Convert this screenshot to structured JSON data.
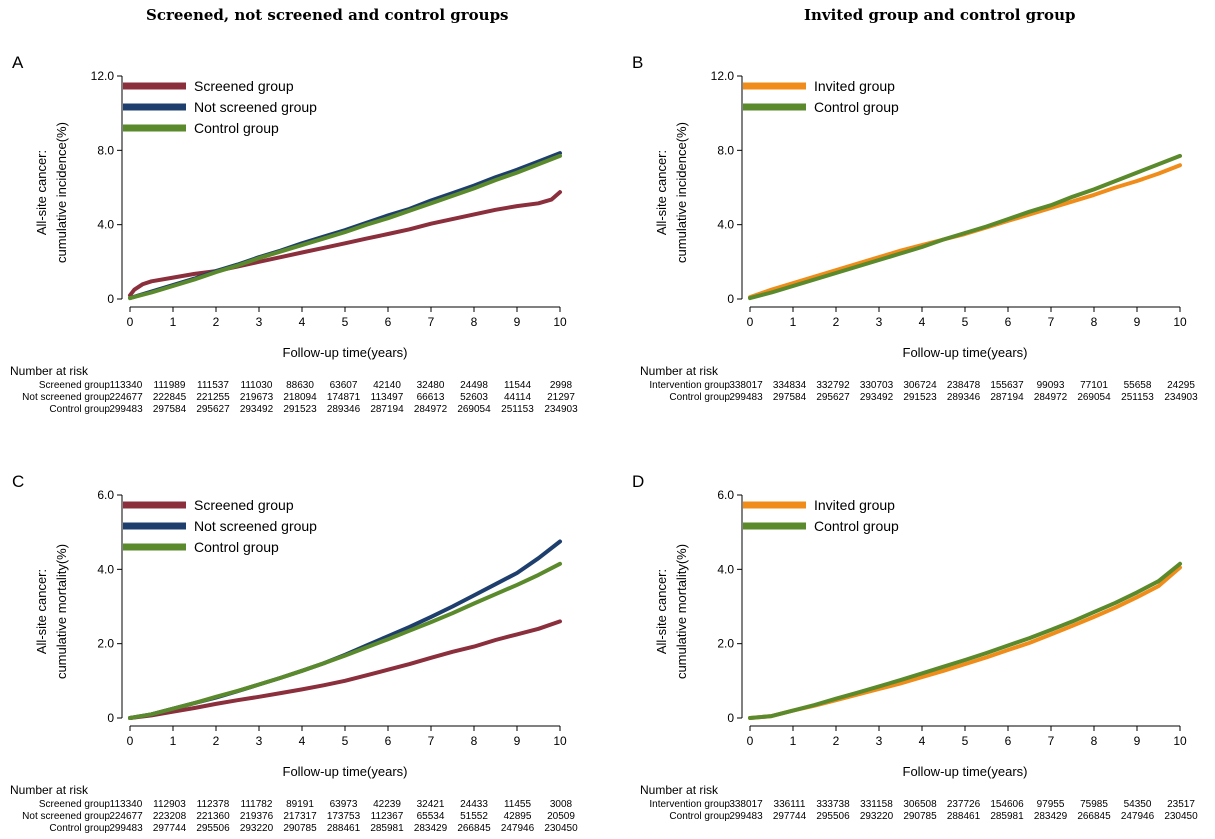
{
  "headings": {
    "left": "Screened, not screened and control groups",
    "right": "Invited group and control group"
  },
  "chart_data": [
    {
      "type": "line",
      "panel": "A",
      "xlabel": "Follow-up time(years)",
      "ylabel_line1": "All-site cancer:",
      "ylabel_line2": "cumulative incidence(%)",
      "xlim": [
        0,
        10
      ],
      "ylim": [
        0,
        12
      ],
      "xticks": [
        0,
        1,
        2,
        3,
        4,
        5,
        6,
        7,
        8,
        9,
        10
      ],
      "yticks": [
        {
          "v": 0,
          "label": "0"
        },
        {
          "v": 4,
          "label": "4.0"
        },
        {
          "v": 8,
          "label": "8.0"
        },
        {
          "v": 12,
          "label": "12.0"
        }
      ],
      "legend_position": "top-left",
      "series": [
        {
          "name": "Screened group",
          "color": "#8B2F3C",
          "x": [
            0,
            0.1,
            0.3,
            0.5,
            1,
            1.5,
            2,
            2.5,
            3,
            3.5,
            4,
            4.5,
            5,
            5.5,
            6,
            6.5,
            7,
            7.5,
            8,
            8.5,
            9,
            9.5,
            9.8,
            10
          ],
          "y": [
            0.2,
            0.5,
            0.8,
            0.95,
            1.15,
            1.35,
            1.5,
            1.75,
            2.0,
            2.25,
            2.5,
            2.75,
            3.0,
            3.25,
            3.5,
            3.75,
            4.05,
            4.3,
            4.55,
            4.8,
            5.0,
            5.15,
            5.35,
            5.75
          ]
        },
        {
          "name": "Not screened group",
          "color": "#1E3F6E",
          "x": [
            0,
            0.5,
            1,
            1.5,
            2,
            2.5,
            3,
            3.5,
            4,
            4.5,
            5,
            5.5,
            6,
            6.5,
            7,
            7.5,
            8,
            8.5,
            9,
            9.5,
            10
          ],
          "y": [
            0.05,
            0.4,
            0.75,
            1.1,
            1.5,
            1.85,
            2.25,
            2.6,
            3.0,
            3.35,
            3.7,
            4.1,
            4.5,
            4.85,
            5.3,
            5.7,
            6.1,
            6.55,
            6.95,
            7.4,
            7.85
          ]
        },
        {
          "name": "Control group",
          "color": "#5A8A2B",
          "x": [
            0,
            0.5,
            1,
            1.5,
            2,
            2.5,
            3,
            3.5,
            4,
            4.5,
            5,
            5.5,
            6,
            6.5,
            7,
            7.5,
            8,
            8.5,
            9,
            9.5,
            10
          ],
          "y": [
            0.05,
            0.35,
            0.7,
            1.05,
            1.45,
            1.8,
            2.2,
            2.55,
            2.9,
            3.25,
            3.6,
            4.0,
            4.35,
            4.75,
            5.15,
            5.55,
            5.95,
            6.4,
            6.8,
            7.25,
            7.7
          ]
        }
      ],
      "risk_title": "Number at risk",
      "risk_rows": [
        {
          "label": "Screened group",
          "values": [
            "113340",
            "111989",
            "111537",
            "111030",
            "88630",
            "63607",
            "42140",
            "32480",
            "24498",
            "11544",
            "2998"
          ]
        },
        {
          "label": "Not screened group",
          "values": [
            "224677",
            "222845",
            "221255",
            "219673",
            "218094",
            "174871",
            "113497",
            "66613",
            "52603",
            "44114",
            "21297"
          ]
        },
        {
          "label": "Control group",
          "values": [
            "299483",
            "297584",
            "295627",
            "293492",
            "291523",
            "289346",
            "287194",
            "284972",
            "269054",
            "251153",
            "234903"
          ]
        }
      ]
    },
    {
      "type": "line",
      "panel": "B",
      "xlabel": "Follow-up time(years)",
      "ylabel_line1": "All-site cancer:",
      "ylabel_line2": "cumulative incidence(%)",
      "xlim": [
        0,
        10
      ],
      "ylim": [
        0,
        12
      ],
      "xticks": [
        0,
        1,
        2,
        3,
        4,
        5,
        6,
        7,
        8,
        9,
        10
      ],
      "yticks": [
        {
          "v": 0,
          "label": "0"
        },
        {
          "v": 4,
          "label": "4.0"
        },
        {
          "v": 8,
          "label": "8.0"
        },
        {
          "v": 12,
          "label": "12.0"
        }
      ],
      "legend_position": "top-left",
      "series": [
        {
          "name": "Invited group",
          "color": "#F08C1A",
          "x": [
            0,
            0.5,
            1,
            1.5,
            2,
            2.5,
            3,
            3.5,
            4,
            4.5,
            5,
            5.5,
            6,
            6.5,
            7,
            7.5,
            8,
            8.5,
            9,
            9.5,
            10
          ],
          "y": [
            0.1,
            0.5,
            0.85,
            1.2,
            1.55,
            1.9,
            2.25,
            2.6,
            2.9,
            3.2,
            3.5,
            3.85,
            4.2,
            4.55,
            4.9,
            5.25,
            5.6,
            6.0,
            6.35,
            6.75,
            7.2
          ]
        },
        {
          "name": "Control group",
          "color": "#5A8A2B",
          "x": [
            0,
            0.5,
            1,
            1.5,
            2,
            2.5,
            3,
            3.5,
            4,
            4.5,
            5,
            5.5,
            6,
            6.5,
            7,
            7.5,
            8,
            8.5,
            9,
            9.5,
            10
          ],
          "y": [
            0.05,
            0.35,
            0.7,
            1.05,
            1.4,
            1.75,
            2.1,
            2.45,
            2.8,
            3.2,
            3.55,
            3.9,
            4.3,
            4.7,
            5.05,
            5.5,
            5.9,
            6.35,
            6.8,
            7.25,
            7.7
          ]
        }
      ],
      "risk_title": "Number at risk",
      "risk_rows": [
        {
          "label": "Intervention group",
          "values": [
            "338017",
            "334834",
            "332792",
            "330703",
            "306724",
            "238478",
            "155637",
            "99093",
            "77101",
            "55658",
            "24295"
          ]
        },
        {
          "label": "Control group",
          "values": [
            "299483",
            "297584",
            "295627",
            "293492",
            "291523",
            "289346",
            "287194",
            "284972",
            "269054",
            "251153",
            "234903"
          ]
        }
      ]
    },
    {
      "type": "line",
      "panel": "C",
      "xlabel": "Follow-up time(years)",
      "ylabel_line1": "All-site cancer:",
      "ylabel_line2": "cumulative mortality(%)",
      "xlim": [
        0,
        10
      ],
      "ylim": [
        0,
        6
      ],
      "xticks": [
        0,
        1,
        2,
        3,
        4,
        5,
        6,
        7,
        8,
        9,
        10
      ],
      "yticks": [
        {
          "v": 0,
          "label": "0"
        },
        {
          "v": 2,
          "label": "2.0"
        },
        {
          "v": 4,
          "label": "4.0"
        },
        {
          "v": 6,
          "label": "6.0"
        }
      ],
      "legend_position": "top-left",
      "series": [
        {
          "name": "Screened group",
          "color": "#8B2F3C",
          "x": [
            0,
            0.5,
            1,
            1.5,
            2,
            2.5,
            3,
            3.5,
            4,
            4.5,
            5,
            5.5,
            6,
            6.5,
            7,
            7.5,
            8,
            8.5,
            9,
            9.5,
            10
          ],
          "y": [
            0,
            0.07,
            0.17,
            0.27,
            0.38,
            0.48,
            0.57,
            0.67,
            0.77,
            0.88,
            1.0,
            1.15,
            1.3,
            1.45,
            1.62,
            1.78,
            1.92,
            2.1,
            2.25,
            2.4,
            2.6
          ]
        },
        {
          "name": "Not screened group",
          "color": "#1E3F6E",
          "x": [
            0,
            0.5,
            1,
            1.5,
            2,
            2.5,
            3,
            3.5,
            4,
            4.5,
            5,
            5.5,
            6,
            6.5,
            7,
            7.5,
            8,
            8.5,
            9,
            9.5,
            10
          ],
          "y": [
            0,
            0.1,
            0.25,
            0.4,
            0.55,
            0.72,
            0.9,
            1.08,
            1.27,
            1.47,
            1.7,
            1.95,
            2.2,
            2.45,
            2.72,
            3.0,
            3.3,
            3.6,
            3.9,
            4.3,
            4.75
          ]
        },
        {
          "name": "Control group",
          "color": "#5A8A2B",
          "x": [
            0,
            0.5,
            1,
            1.5,
            2,
            2.5,
            3,
            3.5,
            4,
            4.5,
            5,
            5.5,
            6,
            6.5,
            7,
            7.5,
            8,
            8.5,
            9,
            9.5,
            10
          ],
          "y": [
            0,
            0.1,
            0.25,
            0.4,
            0.57,
            0.73,
            0.9,
            1.08,
            1.27,
            1.47,
            1.68,
            1.9,
            2.12,
            2.35,
            2.58,
            2.82,
            3.08,
            3.33,
            3.58,
            3.85,
            4.15
          ]
        }
      ],
      "risk_title": "Number at risk",
      "risk_rows": [
        {
          "label": "Screened group",
          "values": [
            "113340",
            "112903",
            "112378",
            "111782",
            "89191",
            "63973",
            "42239",
            "32421",
            "24433",
            "11455",
            "3008"
          ]
        },
        {
          "label": "Not screened group",
          "values": [
            "224677",
            "223208",
            "221360",
            "219376",
            "217317",
            "173753",
            "112367",
            "65534",
            "51552",
            "42895",
            "20509"
          ]
        },
        {
          "label": "Control group",
          "values": [
            "299483",
            "297744",
            "295506",
            "293220",
            "290785",
            "288461",
            "285981",
            "283429",
            "266845",
            "247946",
            "230450"
          ]
        }
      ]
    },
    {
      "type": "line",
      "panel": "D",
      "xlabel": "Follow-up time(years)",
      "ylabel_line1": "All-site cancer:",
      "ylabel_line2": "cumulative mortality(%)",
      "xlim": [
        0,
        10
      ],
      "ylim": [
        0,
        6
      ],
      "xticks": [
        0,
        1,
        2,
        3,
        4,
        5,
        6,
        7,
        8,
        9,
        10
      ],
      "yticks": [
        {
          "v": 0,
          "label": "0"
        },
        {
          "v": 2,
          "label": "2.0"
        },
        {
          "v": 4,
          "label": "4.0"
        },
        {
          "v": 6,
          "label": "6.0"
        }
      ],
      "legend_position": "top-left",
      "series": [
        {
          "name": "Invited group",
          "color": "#F08C1A",
          "x": [
            0,
            0.5,
            1,
            1.5,
            2,
            2.5,
            3,
            3.5,
            4,
            4.5,
            5,
            5.5,
            6,
            6.5,
            7,
            7.5,
            8,
            8.5,
            9,
            9.5,
            10
          ],
          "y": [
            0,
            0.05,
            0.2,
            0.33,
            0.48,
            0.63,
            0.78,
            0.93,
            1.1,
            1.27,
            1.45,
            1.63,
            1.83,
            2.02,
            2.25,
            2.48,
            2.72,
            2.97,
            3.25,
            3.55,
            4.05
          ]
        },
        {
          "name": "Control group",
          "color": "#5A8A2B",
          "x": [
            0,
            0.5,
            1,
            1.5,
            2,
            2.5,
            3,
            3.5,
            4,
            4.5,
            5,
            5.5,
            6,
            6.5,
            7,
            7.5,
            8,
            8.5,
            9,
            9.5,
            10
          ],
          "y": [
            0,
            0.05,
            0.2,
            0.35,
            0.52,
            0.68,
            0.85,
            1.02,
            1.2,
            1.38,
            1.56,
            1.75,
            1.95,
            2.15,
            2.37,
            2.6,
            2.85,
            3.1,
            3.38,
            3.68,
            4.15
          ]
        }
      ],
      "risk_title": "Number at risk",
      "risk_rows": [
        {
          "label": "Intervention group",
          "values": [
            "338017",
            "336111",
            "333738",
            "331158",
            "306508",
            "237726",
            "154606",
            "97955",
            "75985",
            "54350",
            "23517"
          ]
        },
        {
          "label": "Control group",
          "values": [
            "299483",
            "297744",
            "295506",
            "293220",
            "290785",
            "288461",
            "285981",
            "283429",
            "266845",
            "247946",
            "230450"
          ]
        }
      ]
    }
  ]
}
